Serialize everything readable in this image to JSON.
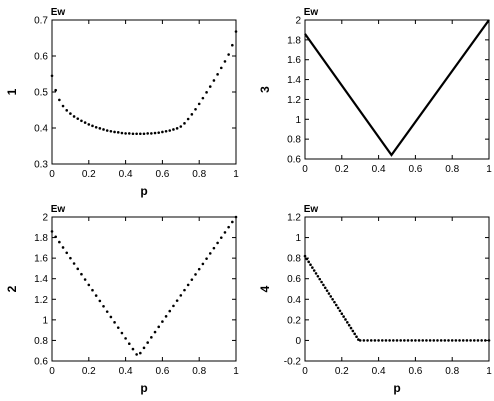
{
  "chart_data": [
    {
      "type": "scatter",
      "title": "Ew",
      "xlabel": "p",
      "ylabel": "1",
      "xlim": [
        0,
        1
      ],
      "ylim": [
        0.3,
        0.7
      ],
      "xticks": [
        "0",
        "0.2",
        "0.4",
        "0.6",
        "0.8",
        "1"
      ],
      "yticks": [
        "0.3",
        "0.4",
        "0.5",
        "0.6",
        "0.7"
      ],
      "style": "dots",
      "series": [
        {
          "x": [
            0.0,
            0.02,
            0.04,
            0.06,
            0.08,
            0.1,
            0.12,
            0.14,
            0.16,
            0.18,
            0.2,
            0.22,
            0.24,
            0.26,
            0.28,
            0.3,
            0.32,
            0.34,
            0.36,
            0.38,
            0.4,
            0.42,
            0.44,
            0.46,
            0.48,
            0.5,
            0.52,
            0.54,
            0.56,
            0.58,
            0.6,
            0.62,
            0.64,
            0.66,
            0.68,
            0.7,
            0.72,
            0.74,
            0.76,
            0.78,
            0.8,
            0.82,
            0.84,
            0.86,
            0.88,
            0.9,
            0.92,
            0.94,
            0.96,
            0.98,
            1.0
          ],
          "y": [
            0.545,
            0.505,
            0.478,
            0.461,
            0.449,
            0.44,
            0.432,
            0.426,
            0.42,
            0.415,
            0.41,
            0.406,
            0.402,
            0.399,
            0.396,
            0.393,
            0.391,
            0.389,
            0.388,
            0.386,
            0.385,
            0.385,
            0.384,
            0.384,
            0.384,
            0.384,
            0.385,
            0.385,
            0.386,
            0.387,
            0.389,
            0.391,
            0.393,
            0.396,
            0.399,
            0.404,
            0.413,
            0.425,
            0.438,
            0.452,
            0.467,
            0.483,
            0.499,
            0.515,
            0.532,
            0.549,
            0.567,
            0.585,
            0.604,
            0.63,
            0.668
          ]
        }
      ]
    },
    {
      "type": "line",
      "title": "Ew",
      "xlabel": "",
      "ylabel": "3",
      "xlim": [
        0,
        1
      ],
      "ylim": [
        0.6,
        2
      ],
      "xticks": [
        "0",
        "0.2",
        "0.4",
        "0.6",
        "0.8",
        "1"
      ],
      "yticks": [
        "0.6",
        "0.8",
        "1",
        "1.2",
        "1.4",
        "1.6",
        "1.8",
        "2"
      ],
      "style": "line",
      "series": [
        {
          "x": [
            0,
            0.47,
            1
          ],
          "y": [
            1.86,
            0.64,
            2.0
          ]
        }
      ]
    },
    {
      "type": "scatter",
      "title": "Ew",
      "xlabel": "p",
      "ylabel": "2",
      "xlim": [
        0,
        1
      ],
      "ylim": [
        0.6,
        2
      ],
      "xticks": [
        "0",
        "0.2",
        "0.4",
        "0.6",
        "0.8",
        "1"
      ],
      "yticks": [
        "0.6",
        "0.8",
        "1",
        "1.2",
        "1.4",
        "1.6",
        "1.8",
        "2"
      ],
      "style": "dots",
      "series": [
        {
          "x": [
            0.0,
            0.02,
            0.04,
            0.06,
            0.08,
            0.1,
            0.12,
            0.14,
            0.16,
            0.18,
            0.2,
            0.22,
            0.24,
            0.26,
            0.28,
            0.3,
            0.32,
            0.34,
            0.36,
            0.38,
            0.4,
            0.42,
            0.44,
            0.46,
            0.48,
            0.5,
            0.52,
            0.54,
            0.56,
            0.58,
            0.6,
            0.62,
            0.64,
            0.66,
            0.68,
            0.7,
            0.72,
            0.74,
            0.76,
            0.78,
            0.8,
            0.82,
            0.84,
            0.86,
            0.88,
            0.9,
            0.92,
            0.94,
            0.96,
            0.98,
            1.0
          ],
          "y": [
            1.86,
            1.808,
            1.756,
            1.704,
            1.652,
            1.6,
            1.548,
            1.496,
            1.444,
            1.392,
            1.34,
            1.288,
            1.236,
            1.184,
            1.132,
            1.08,
            1.028,
            0.976,
            0.924,
            0.872,
            0.82,
            0.768,
            0.716,
            0.664,
            0.677,
            0.728,
            0.779,
            0.83,
            0.881,
            0.932,
            0.983,
            1.034,
            1.085,
            1.136,
            1.187,
            1.238,
            1.289,
            1.34,
            1.391,
            1.442,
            1.493,
            1.544,
            1.595,
            1.646,
            1.697,
            1.748,
            1.799,
            1.85,
            1.901,
            1.952,
            2.0
          ]
        }
      ]
    },
    {
      "type": "scatter",
      "title": "Ew",
      "xlabel": "p",
      "ylabel": "4",
      "xlim": [
        0,
        1
      ],
      "ylim": [
        -0.2,
        1.2
      ],
      "xticks": [
        "0",
        "0.2",
        "0.4",
        "0.6",
        "0.8",
        "1"
      ],
      "yticks": [
        "-0.2",
        "0",
        "0.2",
        "0.4",
        "0.6",
        "0.8",
        "1",
        "1.2"
      ],
      "style": "dots",
      "series": [
        {
          "x": [
            0.0,
            0.01,
            0.02,
            0.03,
            0.04,
            0.05,
            0.06,
            0.07,
            0.08,
            0.09,
            0.1,
            0.11,
            0.12,
            0.13,
            0.14,
            0.15,
            0.16,
            0.17,
            0.18,
            0.19,
            0.2,
            0.21,
            0.22,
            0.23,
            0.24,
            0.25,
            0.26,
            0.27,
            0.28,
            0.29,
            0.3,
            0.32,
            0.34,
            0.36,
            0.38,
            0.4,
            0.42,
            0.44,
            0.46,
            0.48,
            0.5,
            0.52,
            0.54,
            0.56,
            0.58,
            0.6,
            0.62,
            0.64,
            0.66,
            0.68,
            0.7,
            0.72,
            0.74,
            0.76,
            0.78,
            0.8,
            0.82,
            0.84,
            0.86,
            0.88,
            0.9,
            0.92,
            0.94,
            0.96,
            0.98,
            1.0
          ],
          "y": [
            0.82,
            0.792,
            0.764,
            0.736,
            0.708,
            0.68,
            0.652,
            0.624,
            0.596,
            0.568,
            0.54,
            0.512,
            0.484,
            0.456,
            0.428,
            0.4,
            0.372,
            0.344,
            0.316,
            0.288,
            0.26,
            0.232,
            0.204,
            0.176,
            0.148,
            0.12,
            0.092,
            0.064,
            0.036,
            0.008,
            0.0,
            0,
            0,
            0,
            0,
            0,
            0,
            0,
            0,
            0,
            0,
            0,
            0,
            0,
            0,
            0,
            0,
            0,
            0,
            0,
            0,
            0,
            0,
            0,
            0,
            0,
            0,
            0,
            0,
            0,
            0,
            0,
            0,
            0,
            0,
            0
          ]
        }
      ]
    }
  ]
}
